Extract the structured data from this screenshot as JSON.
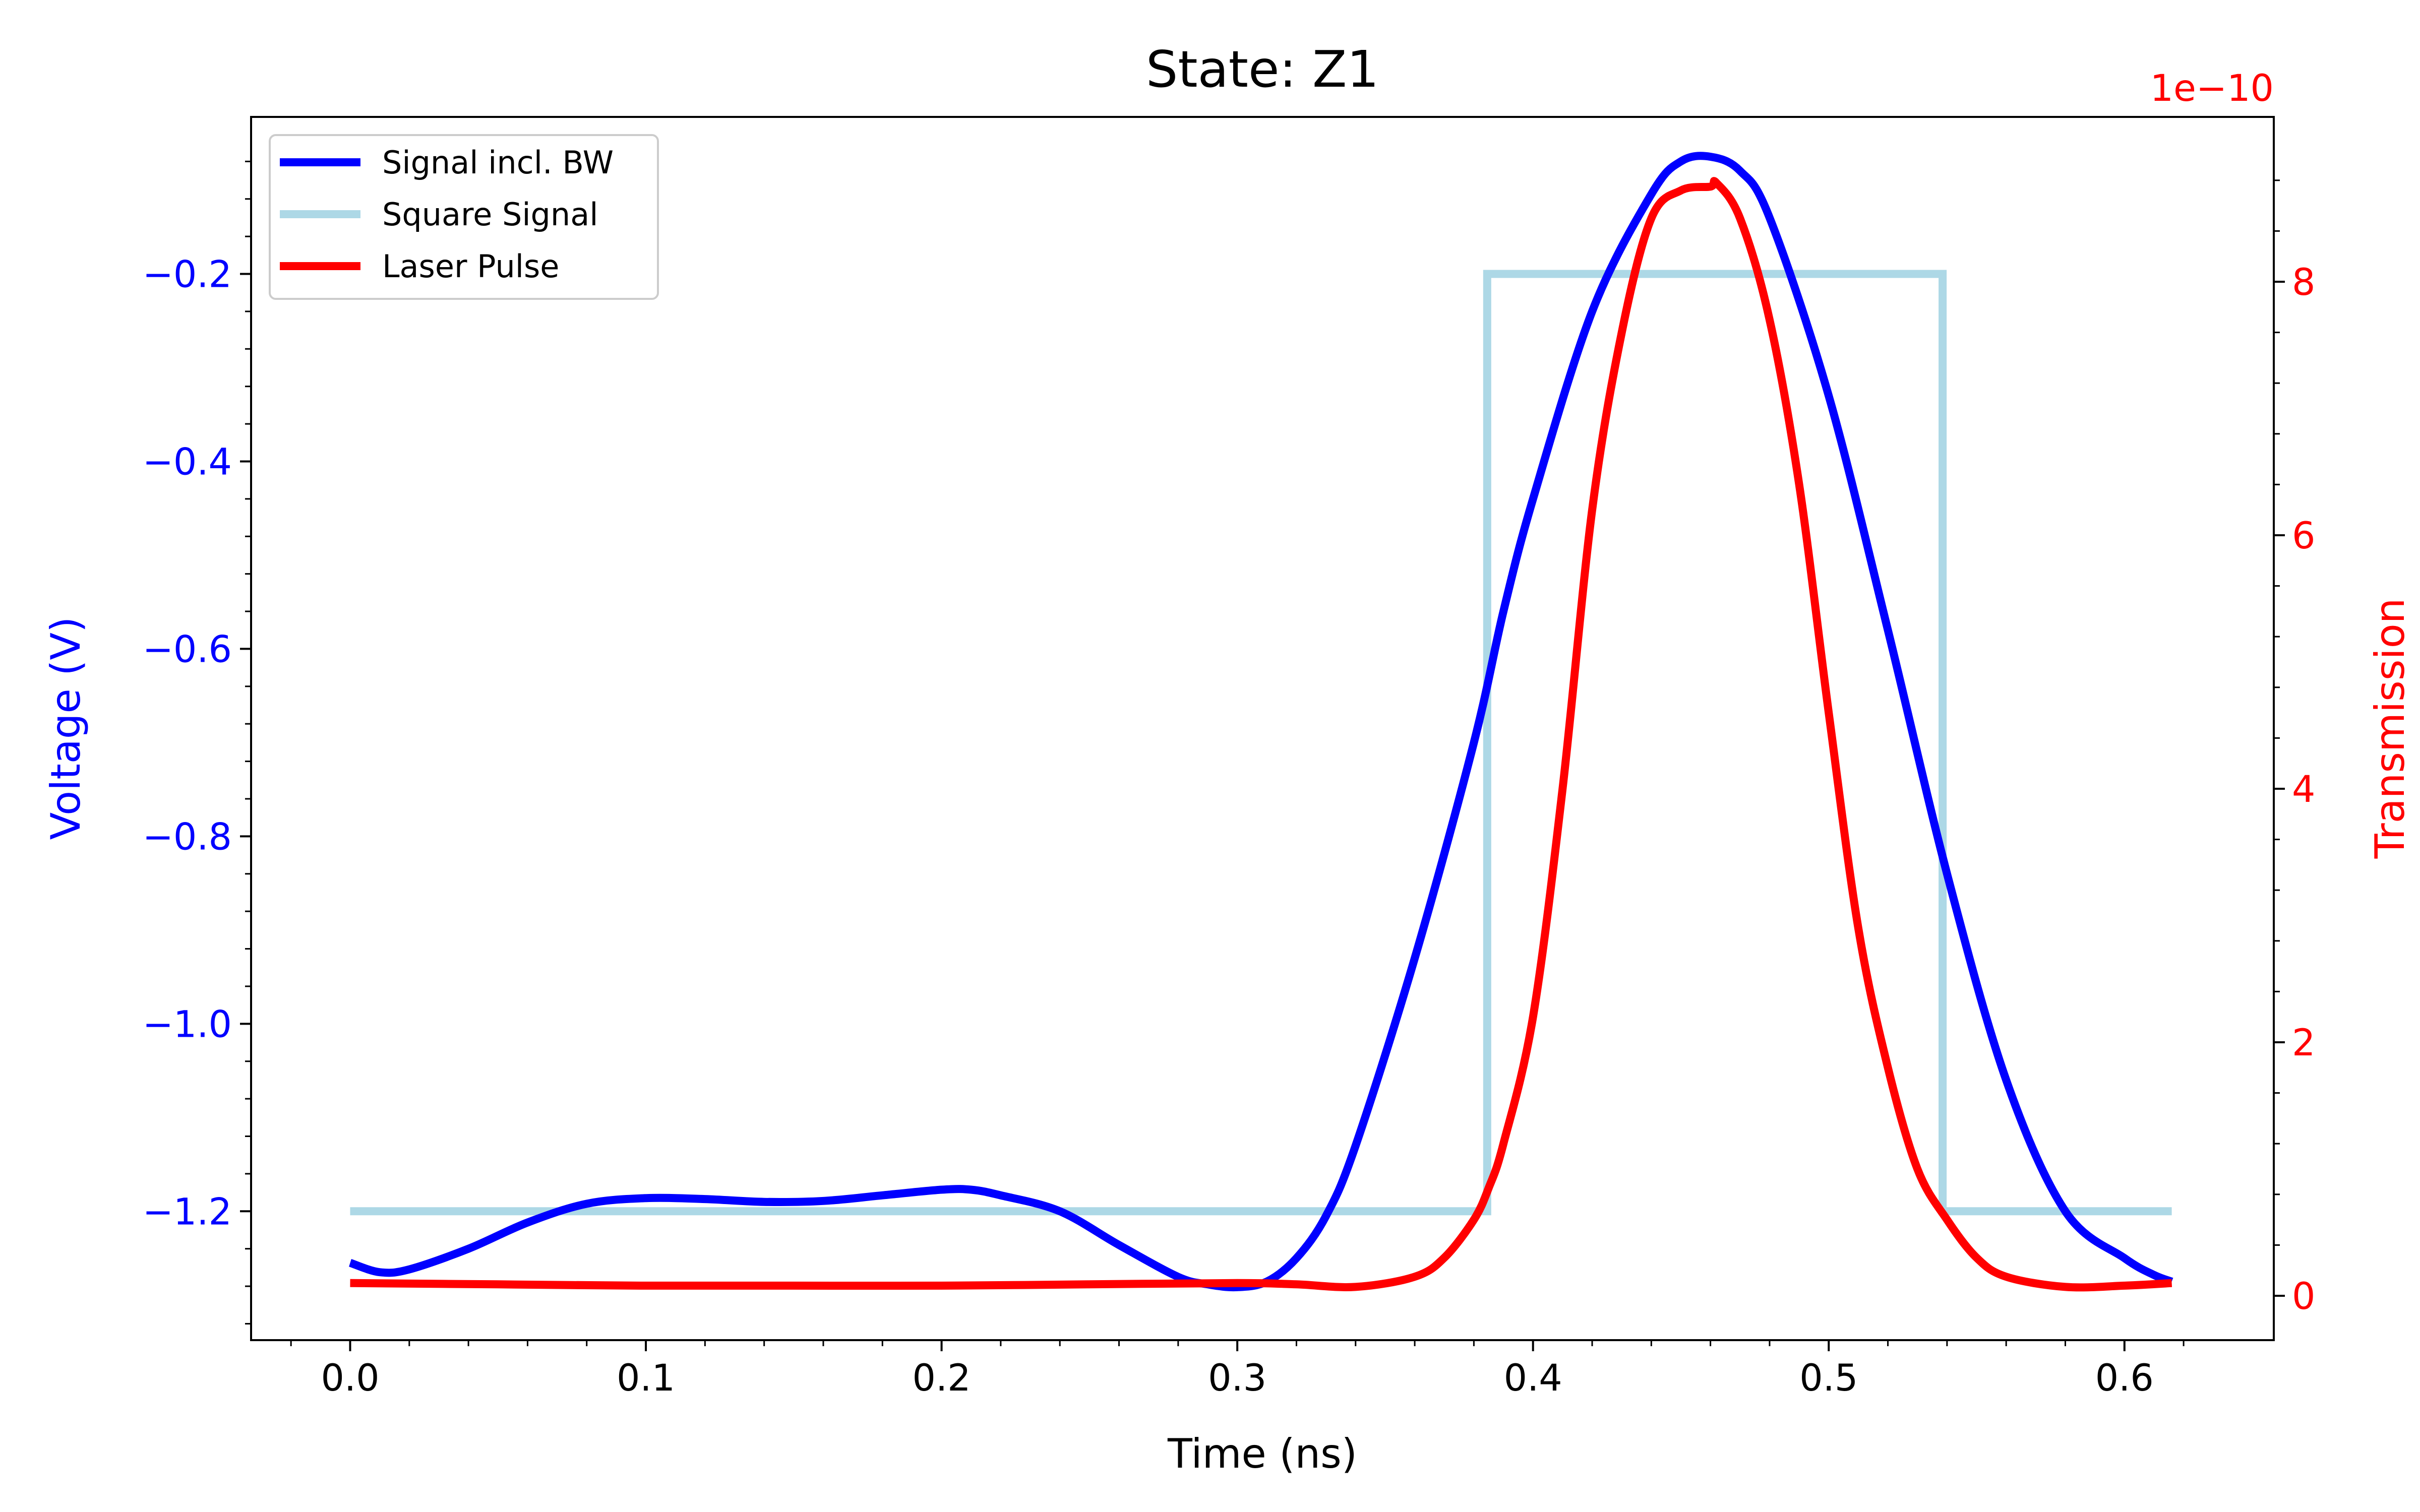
{
  "chart_data": {
    "type": "line",
    "title": "State: Z1",
    "xlabel": "Time (ns)",
    "ylabel_left": "Voltage (V)",
    "ylabel_right": "Transmission",
    "right_axis_offset_label": "1e−10",
    "xlim": [
      -0.0335,
      0.6505
    ],
    "ylim_left": [
      -1.3375,
      -0.0325
    ],
    "ylim_right": [
      -0.35,
      9.3
    ],
    "x_ticks": [
      0.0,
      0.1,
      0.2,
      0.3,
      0.4,
      0.5,
      0.6
    ],
    "x_tick_labels": [
      "0.0",
      "0.1",
      "0.2",
      "0.3",
      "0.4",
      "0.5",
      "0.6"
    ],
    "y_left_ticks": [
      -0.2,
      -0.4,
      -0.6,
      -0.8,
      -1.0,
      -1.2
    ],
    "y_left_tick_labels": [
      "−0.2",
      "−0.4",
      "−0.6",
      "−0.8",
      "−1.0",
      "−1.2"
    ],
    "y_right_ticks": [
      0,
      2,
      4,
      6,
      8
    ],
    "y_right_tick_labels": [
      "0",
      "2",
      "4",
      "6",
      "8"
    ],
    "right_axis_scale": 1e-10,
    "legend_position": "upper left",
    "grid": false,
    "colors": {
      "left_axis": "#0000ff",
      "right_axis": "#ff0000",
      "signal": "#0000ff",
      "square": "#add8e6",
      "laser": "#ff0000"
    },
    "series": [
      {
        "name": "Signal incl. BW",
        "axis": "left",
        "color": "#0000ff",
        "x": [
          0.0,
          0.01,
          0.02,
          0.04,
          0.06,
          0.08,
          0.1,
          0.12,
          0.14,
          0.16,
          0.18,
          0.2,
          0.21,
          0.22,
          0.24,
          0.26,
          0.28,
          0.29,
          0.3,
          0.31,
          0.32,
          0.33,
          0.34,
          0.36,
          0.38,
          0.39,
          0.4,
          0.42,
          0.44,
          0.45,
          0.46,
          0.47,
          0.48,
          0.5,
          0.52,
          0.54,
          0.56,
          0.58,
          0.6,
          0.61,
          0.616
        ],
        "y": [
          -1.255,
          -1.265,
          -1.262,
          -1.24,
          -1.212,
          -1.192,
          -1.186,
          -1.187,
          -1.19,
          -1.189,
          -1.183,
          -1.177,
          -1.177,
          -1.183,
          -1.2,
          -1.236,
          -1.27,
          -1.278,
          -1.281,
          -1.275,
          -1.25,
          -1.205,
          -1.13,
          -0.93,
          -0.7,
          -0.56,
          -0.44,
          -0.24,
          -0.115,
          -0.08,
          -0.075,
          -0.09,
          -0.14,
          -0.33,
          -0.58,
          -0.84,
          -1.06,
          -1.2,
          -1.25,
          -1.268,
          -1.275
        ]
      },
      {
        "name": "Square Signal",
        "axis": "left",
        "color": "#add8e6",
        "x": [
          0.0,
          0.3845,
          0.3845,
          0.5385,
          0.5385,
          0.616
        ],
        "y": [
          -1.2,
          -1.2,
          -0.2,
          -0.2,
          -1.2,
          -1.2
        ]
      },
      {
        "name": "Laser Pulse",
        "axis": "right",
        "color": "#ff0000",
        "x": [
          0.0,
          0.05,
          0.1,
          0.15,
          0.2,
          0.25,
          0.3,
          0.32,
          0.34,
          0.36,
          0.37,
          0.38,
          0.385,
          0.39,
          0.4,
          0.41,
          0.42,
          0.43,
          0.44,
          0.45,
          0.46,
          0.462,
          0.47,
          0.48,
          0.49,
          0.5,
          0.51,
          0.52,
          0.53,
          0.54,
          0.55,
          0.56,
          0.58,
          0.6,
          0.616
        ],
        "y": [
          0.1,
          0.09,
          0.08,
          0.08,
          0.08,
          0.09,
          0.1,
          0.09,
          0.07,
          0.15,
          0.3,
          0.6,
          0.85,
          1.2,
          2.2,
          4.0,
          6.2,
          7.6,
          8.5,
          8.72,
          8.75,
          8.78,
          8.5,
          7.7,
          6.4,
          4.6,
          2.9,
          1.8,
          1.0,
          0.6,
          0.3,
          0.15,
          0.07,
          0.08,
          0.1
        ]
      }
    ]
  }
}
